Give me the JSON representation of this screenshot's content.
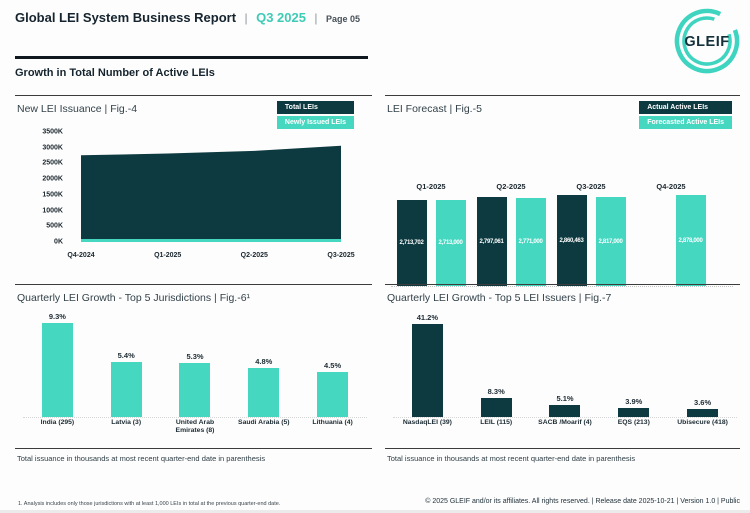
{
  "header": {
    "title": "Global LEI System Business Report",
    "separator": "|",
    "period": "Q3 2025",
    "page": "Page 05",
    "logo_text": "GLEIF"
  },
  "section": {
    "heading": "Growth in Total Number of Active LEIs"
  },
  "colors": {
    "dark": "#0d3a40",
    "teal": "#45d7c0"
  },
  "chart_data": [
    {
      "id": "fig4",
      "type": "area",
      "title": "New LEI Issuance | Fig.-4",
      "x": [
        "Q4-2024",
        "Q1-2025",
        "Q2-2025",
        "Q3-2025"
      ],
      "series": [
        {
          "name": "Total LEIs",
          "color": "#0d3a40",
          "values": [
            2760000,
            2815000,
            2900000,
            3060000
          ],
          "estimated": true
        },
        {
          "name": "Newly Issued LEIs",
          "color": "#45d7c0",
          "values": [
            85000,
            85000,
            85000,
            90000
          ],
          "estimated": true
        }
      ],
      "y_ticks": [
        "3500K",
        "3000K",
        "2500K",
        "2000K",
        "1500K",
        "1000K",
        "500K",
        "0K"
      ],
      "ylim": [
        0,
        3500000
      ],
      "grid": false,
      "legend_position": "top-right"
    },
    {
      "id": "fig5",
      "type": "bar",
      "title": "LEI Forecast | Fig.-5",
      "categories": [
        "Q1-2025",
        "Q2-2025",
        "Q3-2025",
        "Q4-2025"
      ],
      "series": [
        {
          "name": "Actual Active LEIs",
          "color": "#0d3a40",
          "values": [
            2713702,
            2797061,
            2860463,
            null
          ],
          "labels": [
            "2,713,702",
            "2,797,061",
            "2,860,463",
            null
          ]
        },
        {
          "name": "Forecasted Active LEIs",
          "color": "#45d7c0",
          "values": [
            2713000,
            2771000,
            2817000,
            2878000
          ],
          "labels": [
            "2,713,000",
            "2,771,000",
            "2,817,000",
            "2,878,000"
          ]
        }
      ],
      "legend_position": "top-right"
    },
    {
      "id": "fig6",
      "type": "bar",
      "title": "Quarterly LEI Growth - Top 5 Jurisdictions | Fig.-6¹",
      "categories": [
        "India (295)",
        "Latvia (3)",
        "United Arab Emirates (8)",
        "Saudi Arabia (5)",
        "Lithuania (4)"
      ],
      "values": [
        9.3,
        5.4,
        5.3,
        4.8,
        4.5
      ],
      "value_labels": [
        "9.3%",
        "5.4%",
        "5.3%",
        "4.8%",
        "4.5%"
      ],
      "color": "#45d7c0",
      "note": "Total issuance in thousands at most recent quarter-end date in parenthesis"
    },
    {
      "id": "fig7",
      "type": "bar",
      "title": "Quarterly LEI Growth - Top 5 LEI Issuers | Fig.-7",
      "categories": [
        "NasdaqLEI (39)",
        "LEIL (115)",
        "SACB /Moarif (4)",
        "EQS (213)",
        "Ubisecure (418)"
      ],
      "values": [
        41.2,
        8.3,
        5.1,
        3.9,
        3.6
      ],
      "value_labels": [
        "41.2%",
        "8.3%",
        "5.1%",
        "3.9%",
        "3.6%"
      ],
      "color": "#0d3a40",
      "note": "Total issuance in thousands at most recent quarter-end date in parenthesis"
    }
  ],
  "footer": {
    "footnote": "1. Analysis includes only those jurisdictions with at least 1,000 LEIs in total at the previous quarter-end date.",
    "copyright": "© 2025 GLEIF and/or its affiliates. All rights reserved. | Release date 2025-10-21 | Version 1.0 | Public"
  }
}
